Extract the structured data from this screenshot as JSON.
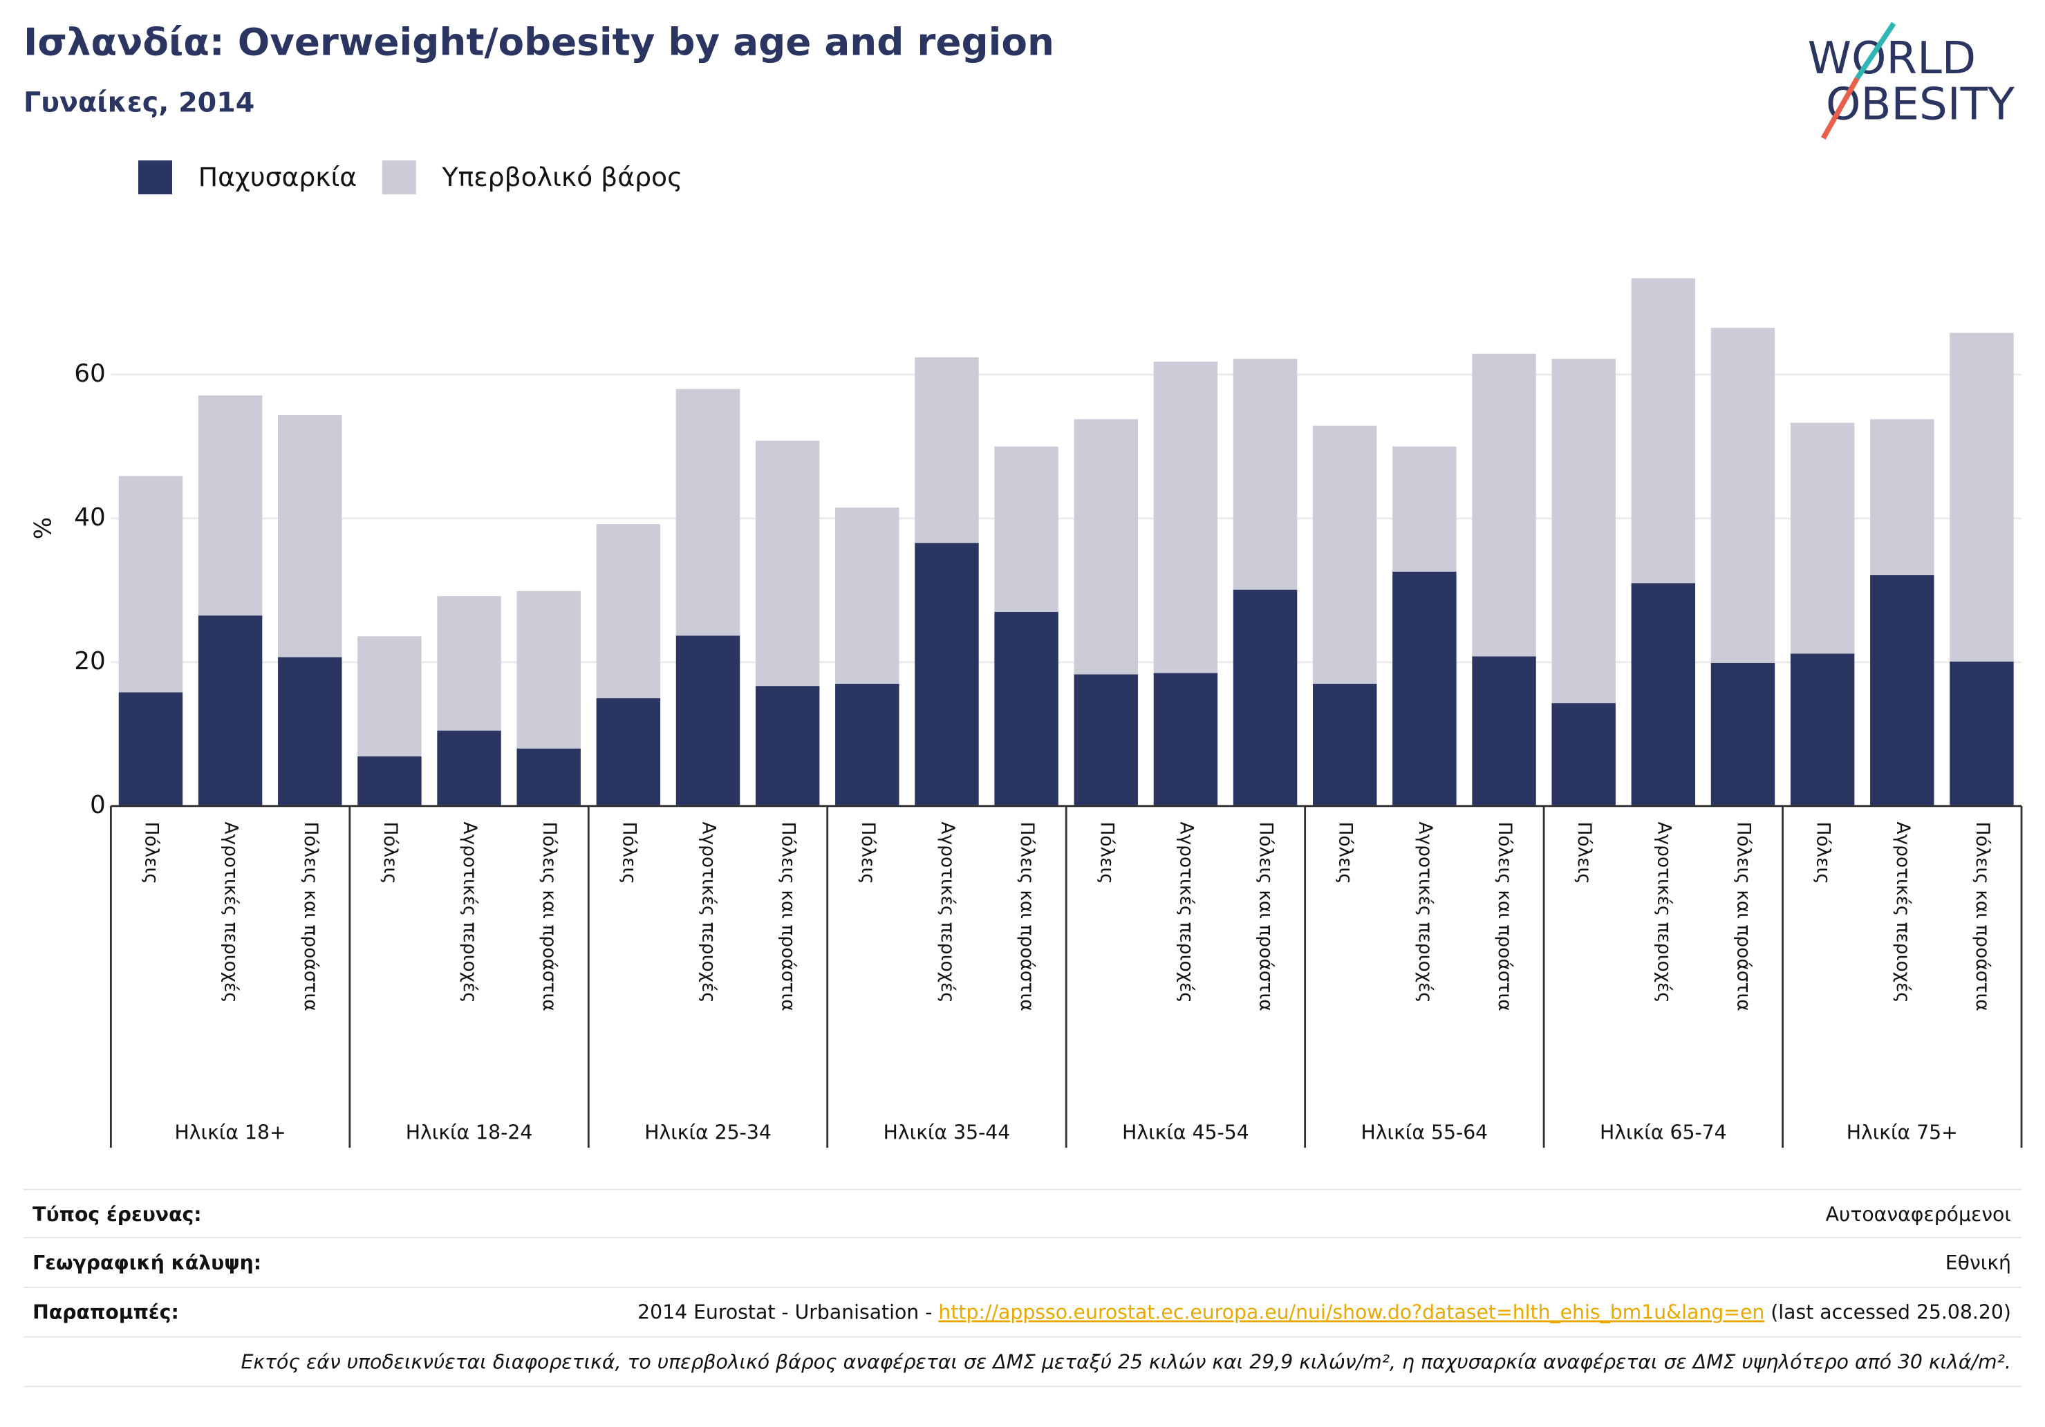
{
  "title": "Ισλανδία: Overweight/obesity by age and region",
  "subtitle": "Γυναίκες, 2014",
  "logo": {
    "line1": "WORLD",
    "line2": "OBESITY"
  },
  "chart_data": {
    "type": "bar",
    "stacked": true,
    "y_label": "%",
    "categories": [
      "Πόλεις",
      "Αγροτικές περιοχές",
      "Πόλεις και προάστια",
      "Πόλεις",
      "Αγροτικές περιοχές",
      "Πόλεις και προάστια",
      "Πόλεις",
      "Αγροτικές περιοχές",
      "Πόλεις και προάστια",
      "Πόλεις",
      "Αγροτικές περιοχές",
      "Πόλεις και προάστια",
      "Πόλεις",
      "Αγροτικές περιοχές",
      "Πόλεις και προάστια",
      "Πόλεις",
      "Αγροτικές περιοχές",
      "Πόλεις και προάστια",
      "Πόλεις",
      "Αγροτικές περιοχές",
      "Πόλεις και προάστια",
      "Πόλεις",
      "Αγροτικές περιοχές",
      "Πόλεις και προάστια"
    ],
    "groups": [
      "Ηλικία 18+",
      "Ηλικία 18-24",
      "Ηλικία 25-34",
      "Ηλικία 35-44",
      "Ηλικία 45-54",
      "Ηλικία 55-64",
      "Ηλικία 65-74",
      "Ηλικία 75+"
    ],
    "series": [
      {
        "name": "Παχυσαρκία",
        "color": "#2a3561",
        "values": [
          15.8,
          26.5,
          20.7,
          6.9,
          10.5,
          8.0,
          15.0,
          23.7,
          16.7,
          17.0,
          36.6,
          27.0,
          18.3,
          18.5,
          30.1,
          17.0,
          32.6,
          20.8,
          14.3,
          31.0,
          19.9,
          21.2,
          32.1,
          20.1
        ]
      },
      {
        "name": "Υπερβολικό βάρος",
        "color": "#cbccd8",
        "values": [
          30.1,
          30.6,
          33.7,
          16.7,
          18.7,
          21.9,
          24.2,
          34.3,
          34.1,
          24.5,
          25.8,
          23.0,
          35.5,
          43.3,
          32.1,
          35.9,
          17.4,
          42.1,
          47.9,
          42.4,
          46.6,
          32.1,
          21.7,
          45.7
        ]
      }
    ],
    "ylim": [
      0,
      76
    ],
    "yticks": [
      0,
      20,
      40,
      60
    ],
    "grid": true,
    "legend": "top-left"
  },
  "footer": {
    "rows": [
      {
        "label": "Τύπος έρευνας:",
        "value": "Αυτοαναφερόμενοι"
      },
      {
        "label": "Γεωγραφική κάλυψη:",
        "value": "Εθνική"
      }
    ],
    "references": {
      "label": "Παραπομπές:",
      "prefix": "2014 Eurostat - Urbanisation - ",
      "link": "http://appsso.eurostat.ec.europa.eu/nui/show.do?dataset=hlth_ehis_bm1u&lang=en",
      "suffix": " (last accessed 25.08.20)"
    },
    "note": "Εκτός εάν υποδεικνύεται διαφορετικά, το υπερβολικό βάρος αναφέρεται σε ΔΜΣ μεταξύ 25 κιλών και 29,9 κιλών/m², η παχυσαρκία αναφέρεται σε ΔΜΣ υψηλότερο από 30 κιλά/m²."
  }
}
